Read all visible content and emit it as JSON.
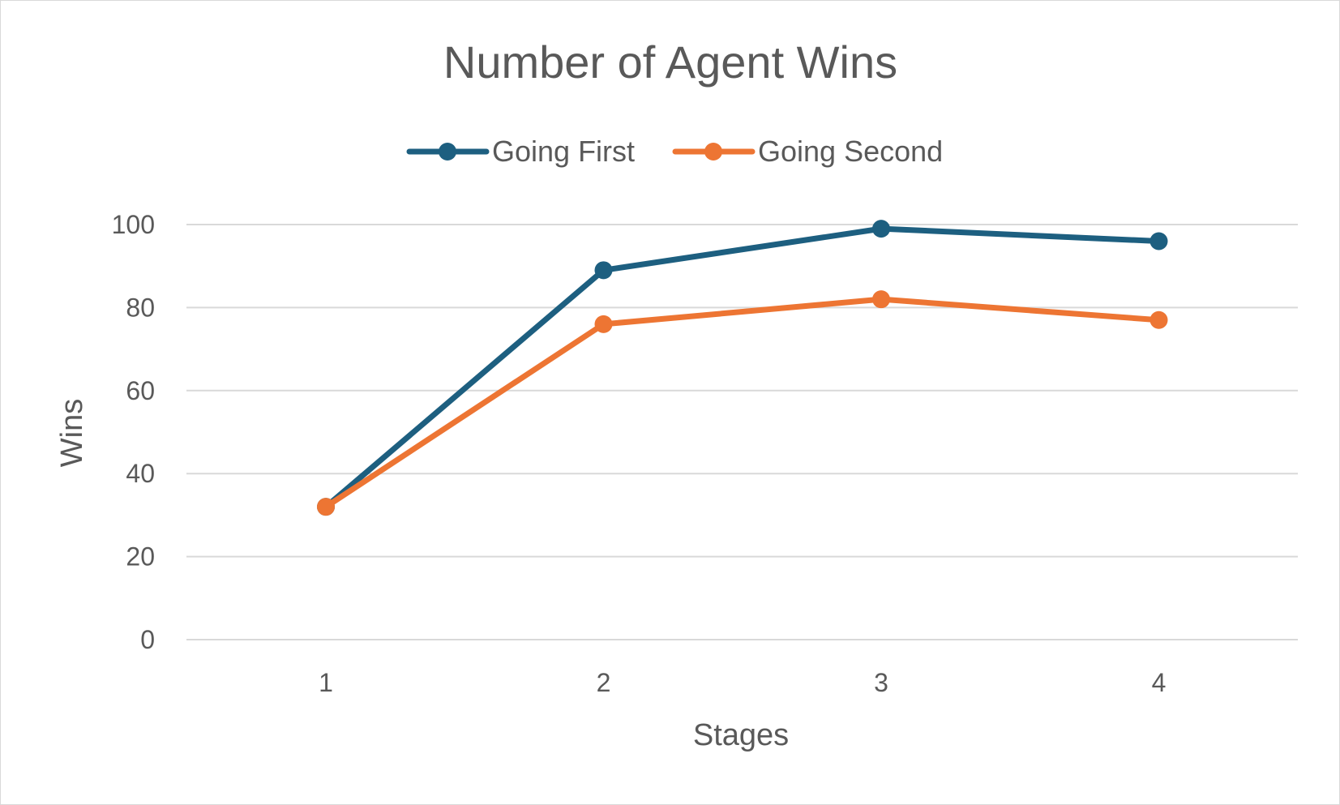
{
  "chart_data": {
    "type": "line",
    "title": "Number of Agent Wins",
    "xlabel": "Stages",
    "ylabel": "Wins",
    "categories": [
      "1",
      "2",
      "3",
      "4"
    ],
    "ylim": [
      0,
      100
    ],
    "yticks": [
      "0",
      "20",
      "40",
      "60",
      "80",
      "100"
    ],
    "grid": true,
    "legend_position": "top",
    "series": [
      {
        "name": "Going First",
        "color": "#1d5f80",
        "values": [
          32,
          89,
          99,
          96
        ]
      },
      {
        "name": "Going Second",
        "color": "#ed7533",
        "values": [
          32,
          76,
          82,
          77
        ]
      }
    ]
  }
}
